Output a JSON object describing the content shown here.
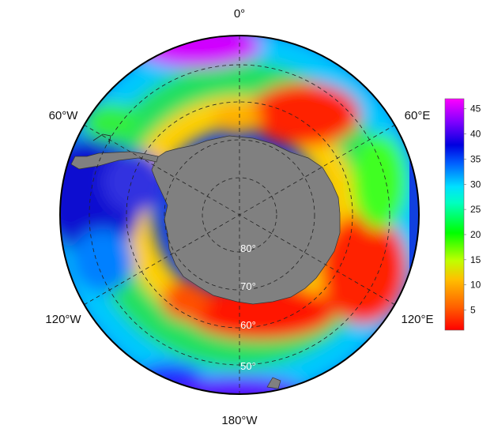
{
  "map": {
    "projection": "south-polar-stereographic",
    "land_color": "#808080",
    "longitude_labels": [
      {
        "id": "lon-0",
        "text": "0°"
      },
      {
        "id": "lon-60e",
        "text": "60°E"
      },
      {
        "id": "lon-120e",
        "text": "120°E"
      },
      {
        "id": "lon-180w",
        "text": "180°W"
      },
      {
        "id": "lon-120w",
        "text": "120°W"
      },
      {
        "id": "lon-60w",
        "text": "60°W"
      }
    ],
    "latitude_labels": [
      {
        "id": "lat-80",
        "text": "80°"
      },
      {
        "id": "lat-70",
        "text": "70°"
      },
      {
        "id": "lat-60",
        "text": "60°"
      },
      {
        "id": "lat-50",
        "text": "50°"
      }
    ]
  },
  "colorbar": {
    "min": 1,
    "max": 47,
    "ticks": [
      "5",
      "10",
      "15",
      "20",
      "25",
      "30",
      "35",
      "40",
      "45"
    ],
    "tick_values": [
      5,
      10,
      15,
      20,
      25,
      30,
      35,
      40,
      45
    ],
    "colors": [
      "#ff0000",
      "#ff8000",
      "#ffff00",
      "#80ff00",
      "#00ff00",
      "#00ffff",
      "#0080ff",
      "#0000ff",
      "#8000ff",
      "#ff00ff"
    ]
  }
}
